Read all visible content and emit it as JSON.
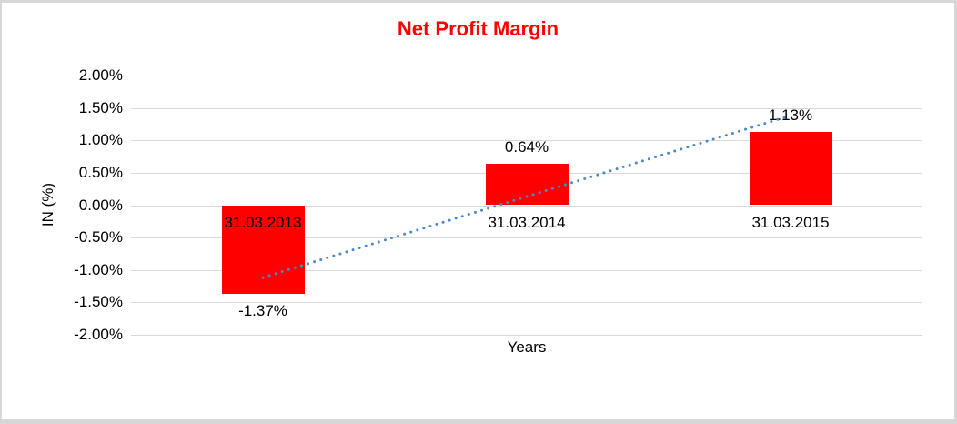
{
  "title": "Net Profit Margin",
  "axis": {
    "x_title": "Years",
    "y_title": "IN (%)"
  },
  "colors": {
    "title": "#FF0000",
    "bar": "#FF0000",
    "gridline": "#D9D9D9",
    "trendline": "#4E87C5",
    "label_text": "#000000"
  },
  "chart_data": {
    "type": "bar",
    "title": "Net Profit Margin",
    "categories": [
      "31.03.2013",
      "31.03.2014",
      "31.03.2015"
    ],
    "values": [
      -1.37,
      0.64,
      1.13
    ],
    "data_labels": [
      "-1.37%",
      "0.64%",
      "1.13%"
    ],
    "series": [
      {
        "name": "Net Profit Margin",
        "values": [
          -1.37,
          0.64,
          1.13
        ]
      }
    ],
    "xlabel": "Years",
    "ylabel": "IN (%)",
    "ylim": [
      -2.0,
      2.0
    ],
    "ytick_step": 0.5,
    "ytick_labels": [
      "2.00%",
      "1.50%",
      "1.00%",
      "0.50%",
      "0.00%",
      "-0.50%",
      "-1.00%",
      "-1.50%",
      "-2.00%"
    ],
    "grid": true,
    "legend": "none",
    "bar_color": "#FF0000",
    "trendline": {
      "type": "linear",
      "style": "dotted",
      "color": "#4E87C5",
      "fit_values": [
        -1.1167,
        0.1333,
        1.3833
      ]
    }
  }
}
